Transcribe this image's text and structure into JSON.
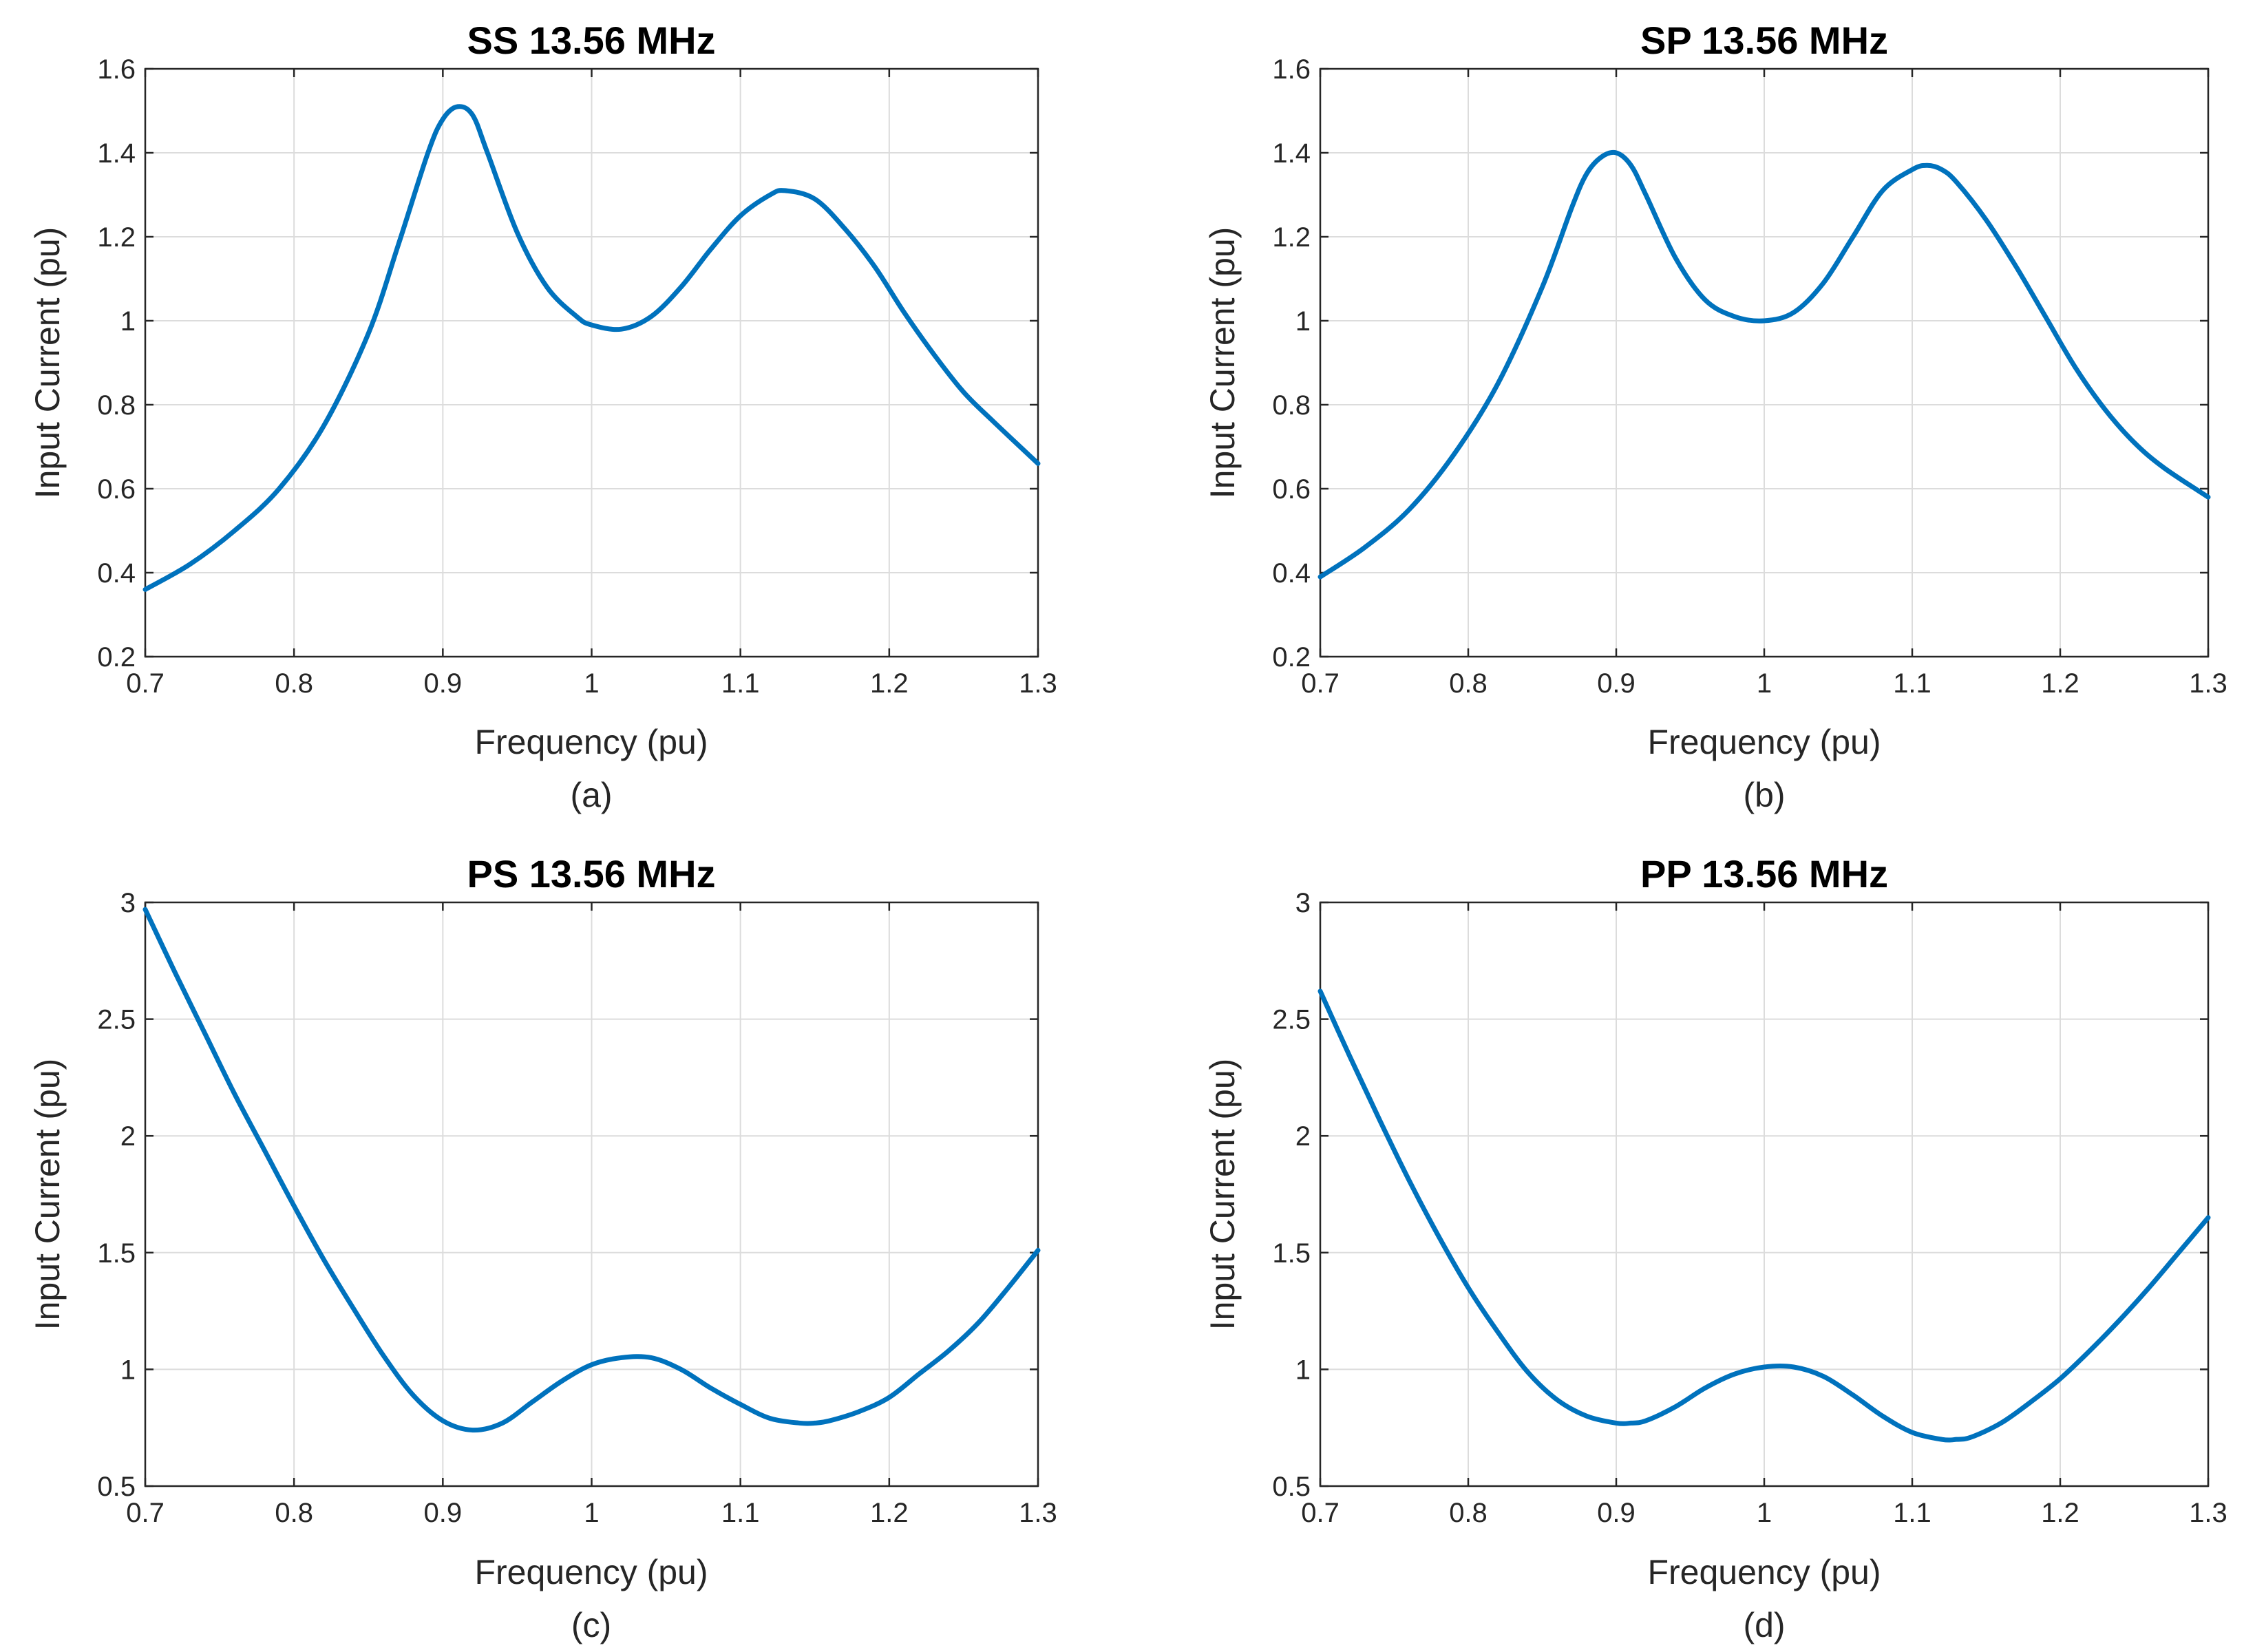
{
  "colors": {
    "line": "#0072BD",
    "axis": "#262626",
    "grid": "#dcdcdc",
    "background": "#ffffff"
  },
  "chart_data": [
    {
      "type": "line",
      "id": "ss",
      "title": "SS 13.56 MHz",
      "caption": "(a)",
      "xlabel": "Frequency (pu)",
      "ylabel": "Input Current (pu)",
      "xlim": [
        0.7,
        1.3
      ],
      "ylim": [
        0.2,
        1.6
      ],
      "xticks": [
        0.7,
        0.8,
        0.9,
        1.0,
        1.1,
        1.2,
        1.3
      ],
      "xtick_labels": [
        "0.7",
        "0.8",
        "0.9",
        "1",
        "1.1",
        "1.2",
        "1.3"
      ],
      "yticks": [
        0.2,
        0.4,
        0.6,
        0.8,
        1.0,
        1.2,
        1.4,
        1.6
      ],
      "ytick_labels": [
        "0.2",
        "0.4",
        "0.6",
        "0.8",
        "1",
        "1.2",
        "1.4",
        "1.6"
      ],
      "grid": true,
      "series": [
        {
          "name": "Input Current",
          "x": [
            0.7,
            0.73,
            0.76,
            0.79,
            0.82,
            0.85,
            0.87,
            0.89,
            0.9,
            0.91,
            0.92,
            0.93,
            0.95,
            0.97,
            0.99,
            1.0,
            1.02,
            1.04,
            1.06,
            1.08,
            1.1,
            1.12,
            1.13,
            1.15,
            1.17,
            1.19,
            1.21,
            1.23,
            1.25,
            1.27,
            1.3
          ],
          "y": [
            0.36,
            0.42,
            0.5,
            0.6,
            0.75,
            0.97,
            1.18,
            1.4,
            1.48,
            1.51,
            1.49,
            1.4,
            1.21,
            1.08,
            1.01,
            0.99,
            0.98,
            1.01,
            1.08,
            1.17,
            1.25,
            1.3,
            1.31,
            1.29,
            1.22,
            1.13,
            1.02,
            0.92,
            0.83,
            0.76,
            0.66
          ]
        }
      ]
    },
    {
      "type": "line",
      "id": "sp",
      "title": "SP 13.56 MHz",
      "caption": "(b)",
      "xlabel": "Frequency (pu)",
      "ylabel": "Input Current (pu)",
      "xlim": [
        0.7,
        1.3
      ],
      "ylim": [
        0.2,
        1.6
      ],
      "xticks": [
        0.7,
        0.8,
        0.9,
        1.0,
        1.1,
        1.2,
        1.3
      ],
      "xtick_labels": [
        "0.7",
        "0.8",
        "0.9",
        "1",
        "1.1",
        "1.2",
        "1.3"
      ],
      "yticks": [
        0.2,
        0.4,
        0.6,
        0.8,
        1.0,
        1.2,
        1.4,
        1.6
      ],
      "ytick_labels": [
        "0.2",
        "0.4",
        "0.6",
        "0.8",
        "1",
        "1.2",
        "1.4",
        "1.6"
      ],
      "grid": true,
      "series": [
        {
          "name": "Input Current",
          "x": [
            0.7,
            0.73,
            0.76,
            0.79,
            0.82,
            0.85,
            0.87,
            0.88,
            0.89,
            0.9,
            0.91,
            0.92,
            0.94,
            0.96,
            0.98,
            1.0,
            1.02,
            1.04,
            1.06,
            1.08,
            1.1,
            1.11,
            1.12,
            1.13,
            1.15,
            1.17,
            1.19,
            1.21,
            1.23,
            1.25,
            1.27,
            1.3
          ],
          "y": [
            0.39,
            0.46,
            0.55,
            0.68,
            0.85,
            1.08,
            1.27,
            1.35,
            1.39,
            1.4,
            1.37,
            1.3,
            1.15,
            1.05,
            1.01,
            1.0,
            1.02,
            1.09,
            1.2,
            1.31,
            1.36,
            1.37,
            1.36,
            1.33,
            1.24,
            1.13,
            1.01,
            0.89,
            0.79,
            0.71,
            0.65,
            0.58
          ]
        }
      ]
    },
    {
      "type": "line",
      "id": "ps",
      "title": "PS 13.56 MHz",
      "caption": "(c)",
      "xlabel": "Frequency (pu)",
      "ylabel": "Input Current (pu)",
      "xlim": [
        0.7,
        1.3
      ],
      "ylim": [
        0.5,
        3.0
      ],
      "xticks": [
        0.7,
        0.8,
        0.9,
        1.0,
        1.1,
        1.2,
        1.3
      ],
      "xtick_labels": [
        "0.7",
        "0.8",
        "0.9",
        "1",
        "1.1",
        "1.2",
        "1.3"
      ],
      "yticks": [
        0.5,
        1.0,
        1.5,
        2.0,
        2.5,
        3.0
      ],
      "ytick_labels": [
        "0.5",
        "1",
        "1.5",
        "2",
        "2.5",
        "3"
      ],
      "grid": true,
      "series": [
        {
          "name": "Input Current",
          "x": [
            0.7,
            0.72,
            0.74,
            0.76,
            0.78,
            0.8,
            0.82,
            0.84,
            0.86,
            0.88,
            0.9,
            0.92,
            0.94,
            0.96,
            0.98,
            1.0,
            1.02,
            1.04,
            1.06,
            1.08,
            1.1,
            1.12,
            1.14,
            1.15,
            1.16,
            1.18,
            1.2,
            1.22,
            1.24,
            1.26,
            1.28,
            1.3
          ],
          "y": [
            2.97,
            2.7,
            2.44,
            2.18,
            1.94,
            1.7,
            1.47,
            1.26,
            1.06,
            0.89,
            0.78,
            0.74,
            0.77,
            0.86,
            0.95,
            1.02,
            1.05,
            1.05,
            1.0,
            0.92,
            0.85,
            0.79,
            0.77,
            0.77,
            0.78,
            0.82,
            0.88,
            0.98,
            1.08,
            1.2,
            1.35,
            1.51
          ]
        }
      ]
    },
    {
      "type": "line",
      "id": "pp",
      "title": "PP 13.56 MHz",
      "caption": "(d)",
      "xlabel": "Frequency (pu)",
      "ylabel": "Input Current (pu)",
      "xlim": [
        0.7,
        1.3
      ],
      "ylim": [
        0.5,
        3.0
      ],
      "xticks": [
        0.7,
        0.8,
        0.9,
        1.0,
        1.1,
        1.2,
        1.3
      ],
      "xtick_labels": [
        "0.7",
        "0.8",
        "0.9",
        "1",
        "1.1",
        "1.2",
        "1.3"
      ],
      "yticks": [
        0.5,
        1.0,
        1.5,
        2.0,
        2.5,
        3.0
      ],
      "ytick_labels": [
        "0.5",
        "1",
        "1.5",
        "2",
        "2.5",
        "3"
      ],
      "grid": true,
      "series": [
        {
          "name": "Input Current",
          "x": [
            0.7,
            0.72,
            0.74,
            0.76,
            0.78,
            0.8,
            0.82,
            0.84,
            0.86,
            0.88,
            0.9,
            0.91,
            0.92,
            0.94,
            0.96,
            0.98,
            1.0,
            1.02,
            1.04,
            1.06,
            1.08,
            1.1,
            1.12,
            1.13,
            1.14,
            1.16,
            1.18,
            1.2,
            1.22,
            1.24,
            1.26,
            1.28,
            1.3
          ],
          "y": [
            2.62,
            2.34,
            2.07,
            1.81,
            1.57,
            1.35,
            1.16,
            0.99,
            0.87,
            0.8,
            0.77,
            0.77,
            0.78,
            0.84,
            0.92,
            0.98,
            1.01,
            1.01,
            0.97,
            0.89,
            0.8,
            0.73,
            0.7,
            0.7,
            0.71,
            0.77,
            0.86,
            0.96,
            1.08,
            1.21,
            1.35,
            1.5,
            1.65
          ]
        }
      ]
    }
  ]
}
